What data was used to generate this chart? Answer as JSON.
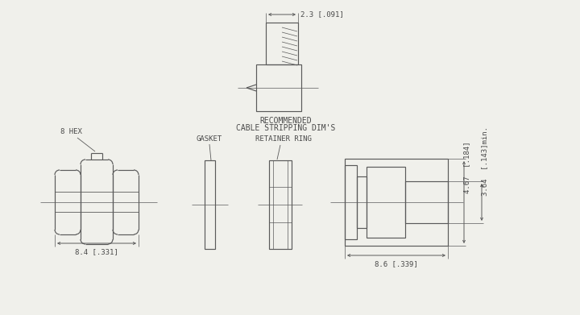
{
  "bg_color": "#f0f0eb",
  "line_color": "#5a5a5a",
  "text_color": "#4a4a4a",
  "title_line1": "RECOMMENDED",
  "title_line2": "CABLE STRIPPING DIM'S",
  "label_8hex": "8 HEX",
  "label_gasket": "GASKET",
  "label_retainer": "RETAINER RING",
  "dim_23": "2.3 [.091]",
  "dim_84": "8.4 [.331]",
  "dim_86": "8.6 [.339]",
  "dim_467": "4.67  [.184]",
  "dim_364": "3.64  [.143]min.",
  "fs": 6.5
}
